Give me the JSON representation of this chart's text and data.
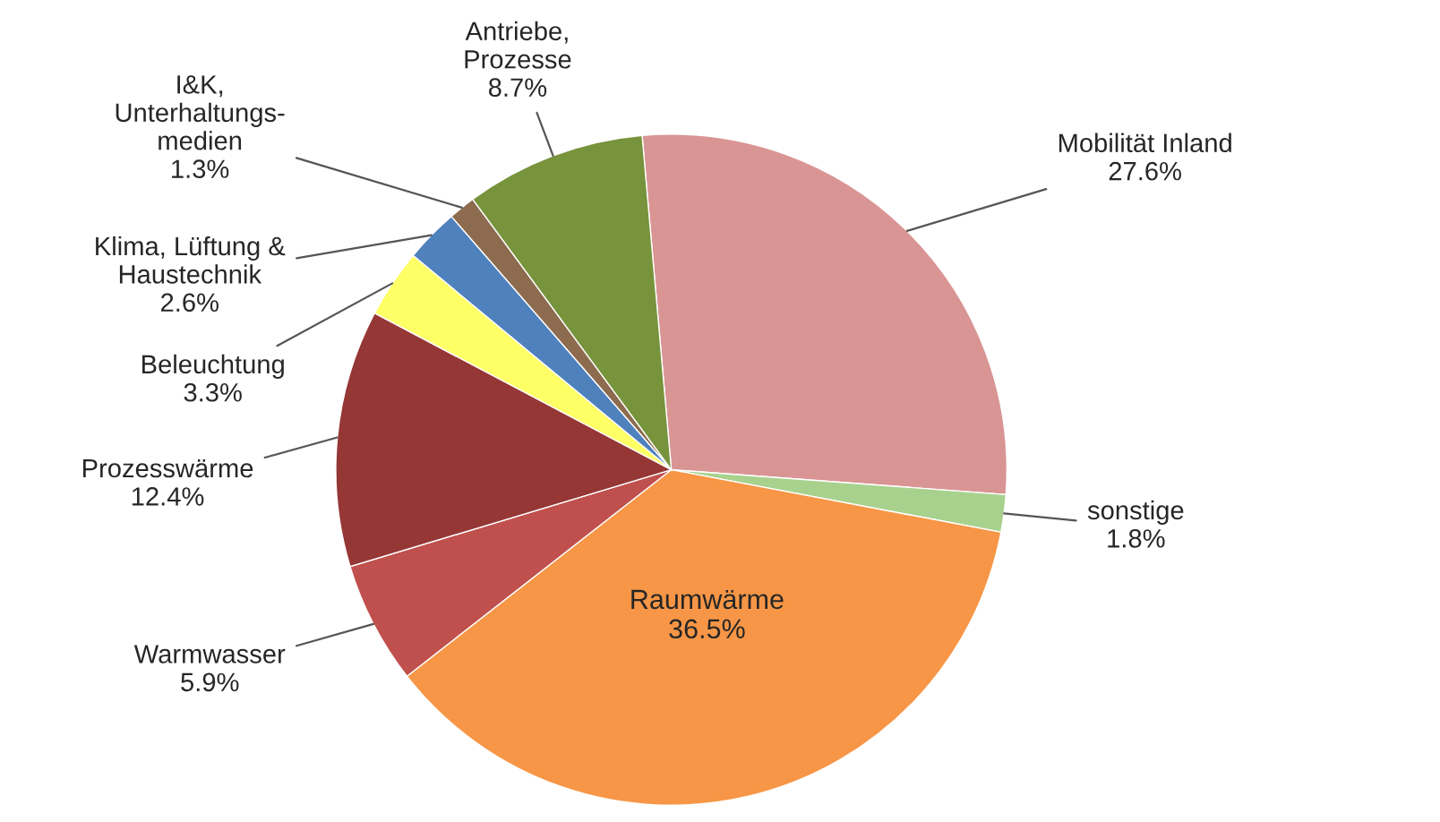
{
  "chart_data": {
    "type": "pie",
    "categories": [
      "Mobilität Inland",
      "sonstige",
      "Raumwärme",
      "Warmwasser",
      "Prozesswärme",
      "Beleuchtung",
      "Klima, Lüftung &\nHaustechnik",
      "I&K,\nUnterhaltungs-\nmedien",
      "Antriebe,\nProzesse"
    ],
    "values": [
      27.6,
      1.8,
      36.5,
      5.9,
      12.4,
      3.3,
      2.6,
      1.3,
      8.7
    ],
    "value_labels": [
      "27.6%",
      "1.8%",
      "36.5%",
      "5.9%",
      "12.4%",
      "3.3%",
      "2.6%",
      "1.3%",
      "8.7%"
    ],
    "colors": [
      "#d99594",
      "#a9d18e",
      "#f79646",
      "#c0504d",
      "#953735",
      "#ffff66",
      "#4f81bd",
      "#8c6b4f",
      "#77933c"
    ],
    "legend": false
  }
}
